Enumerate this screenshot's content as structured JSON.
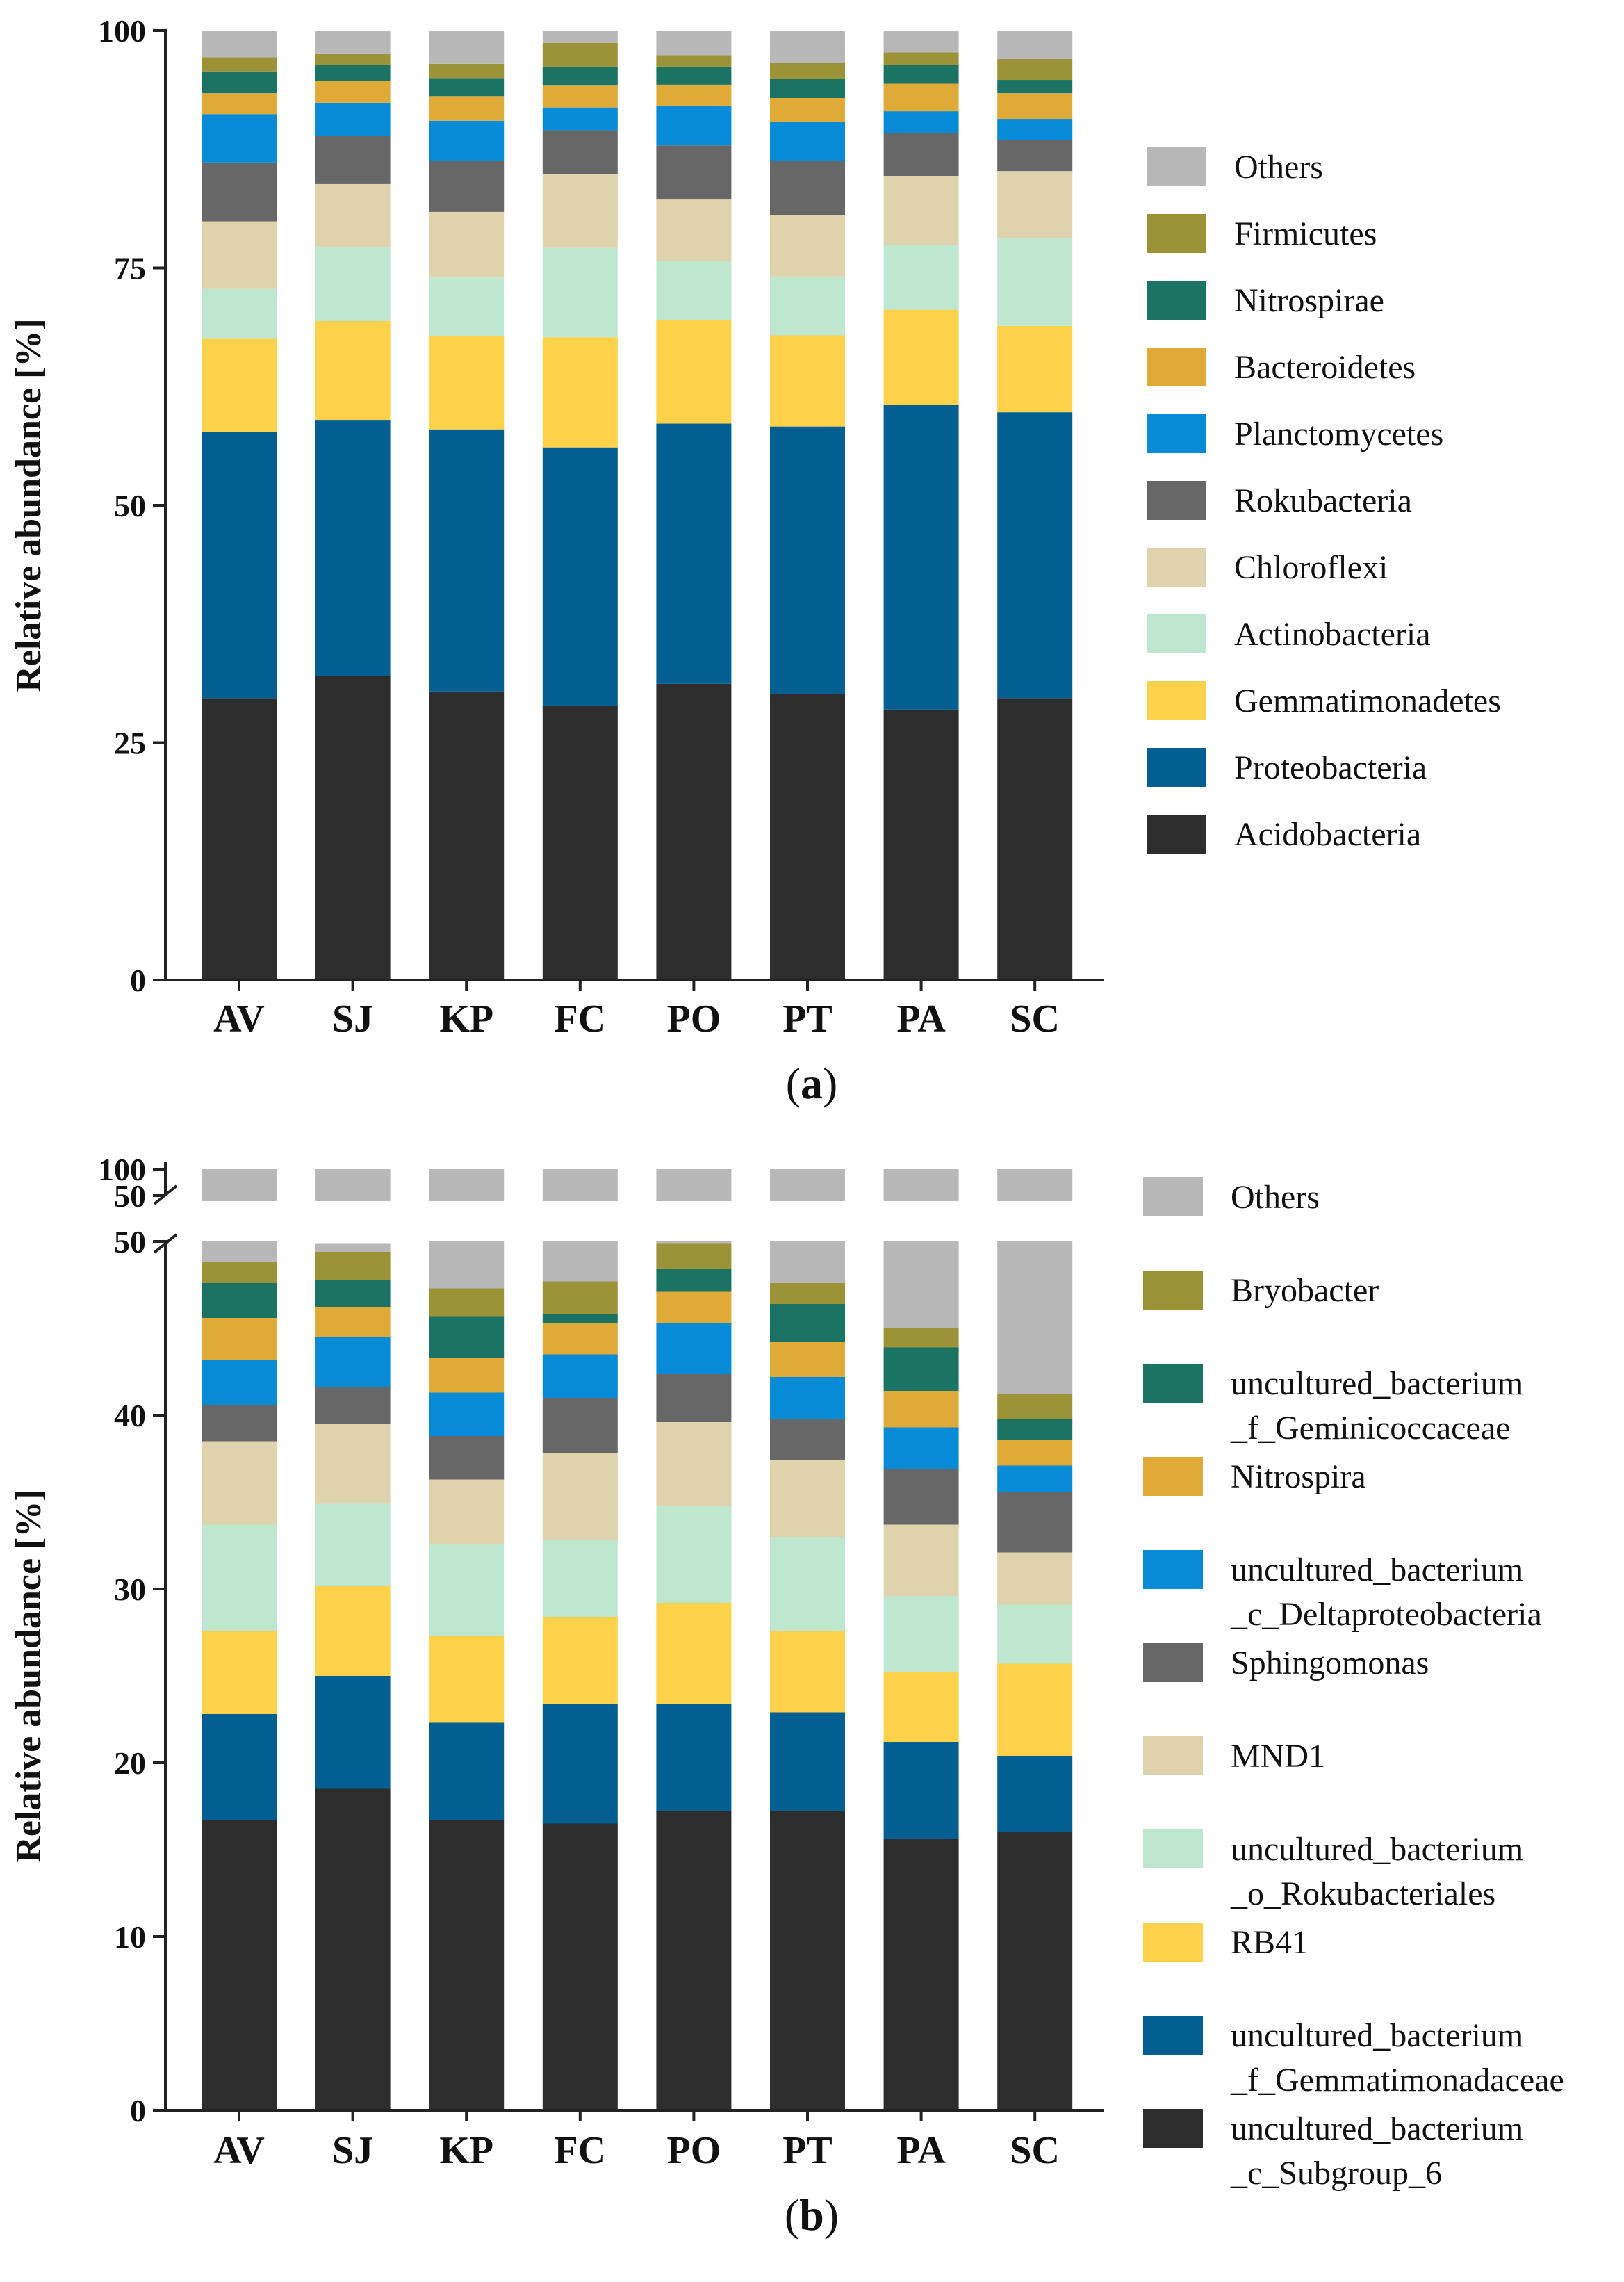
{
  "chart_data": [
    {
      "panel": "a",
      "panel_label": "a",
      "type": "bar",
      "stacked": true,
      "ylabel": "Relative abundance [%]",
      "ylim": [
        0,
        100
      ],
      "yticks": [
        0,
        25,
        50,
        75,
        100
      ],
      "categories": [
        "AV",
        "SJ",
        "KP",
        "FC",
        "PO",
        "PT",
        "PA",
        "SC"
      ],
      "legend_position": "right",
      "series": [
        {
          "name": "Acidobacteria",
          "color": "#2d2d2d",
          "values": [
            29.7,
            32.0,
            30.4,
            28.9,
            31.2,
            30.1,
            28.5,
            29.7
          ]
        },
        {
          "name": "Proteobacteria",
          "color": "#035f91",
          "values": [
            28.0,
            27.0,
            27.6,
            27.2,
            27.4,
            28.2,
            32.1,
            30.1
          ]
        },
        {
          "name": "Gemmatimonadetes",
          "color": "#fdd24a",
          "values": [
            9.9,
            10.4,
            9.8,
            11.6,
            10.9,
            9.6,
            10.0,
            9.1
          ]
        },
        {
          "name": "Actinobacteria",
          "color": "#bfe6cf",
          "values": [
            5.2,
            7.8,
            6.2,
            9.4,
            6.2,
            6.2,
            6.8,
            9.2
          ]
        },
        {
          "name": "Chloroflexi",
          "color": "#dfd3ad",
          "values": [
            7.1,
            6.7,
            6.9,
            7.8,
            6.5,
            6.5,
            7.3,
            7.1
          ]
        },
        {
          "name": "Rokubacteria",
          "color": "#676767",
          "values": [
            6.2,
            5.0,
            5.4,
            4.6,
            5.7,
            5.7,
            4.5,
            3.3
          ]
        },
        {
          "name": "Planctomycetes",
          "color": "#078bd6",
          "values": [
            5.1,
            3.5,
            4.2,
            2.4,
            4.2,
            4.1,
            2.3,
            2.2
          ]
        },
        {
          "name": "Bacteroidetes",
          "color": "#e0aa38",
          "values": [
            2.2,
            2.3,
            2.6,
            2.3,
            2.2,
            2.5,
            2.9,
            2.7
          ]
        },
        {
          "name": "Nitrospirae",
          "color": "#1a7363",
          "values": [
            2.3,
            1.7,
            1.9,
            2.0,
            1.9,
            2.0,
            2.0,
            1.4
          ]
        },
        {
          "name": "Firmicutes",
          "color": "#9c9238",
          "values": [
            1.5,
            1.2,
            1.5,
            2.5,
            1.2,
            1.7,
            1.3,
            2.2
          ]
        },
        {
          "name": "Others",
          "color": "#b8b8b8",
          "values": [
            2.8,
            2.4,
            3.5,
            1.3,
            2.6,
            3.4,
            2.3,
            3.0
          ]
        }
      ]
    },
    {
      "panel": "b",
      "panel_label": "b",
      "type": "bar",
      "stacked": true,
      "broken_axis": true,
      "ylabel": "Relative abundance [%]",
      "ylim": [
        0,
        50
      ],
      "yticks": [
        0,
        10,
        20,
        30,
        40,
        50
      ],
      "break_ticks": [
        50,
        100
      ],
      "categories": [
        "AV",
        "SJ",
        "KP",
        "FC",
        "PO",
        "PT",
        "PA",
        "SC"
      ],
      "legend_position": "right",
      "series": [
        {
          "name": "uncultured_bacterium_c_Subgroup_6",
          "label_lines": [
            "uncultured_bacterium",
            "_c_Subgroup_6"
          ],
          "color": "#2d2d2d",
          "values": [
            16.7,
            18.5,
            16.7,
            16.5,
            17.2,
            17.2,
            15.6,
            16.0
          ]
        },
        {
          "name": "uncultured_bacterium_f_Gemmatimonadaceae",
          "label_lines": [
            "uncultured_bacterium",
            "_f_Gemmatimonadaceae"
          ],
          "color": "#035f91",
          "values": [
            6.1,
            6.5,
            5.6,
            6.9,
            6.2,
            5.7,
            5.6,
            4.4
          ]
        },
        {
          "name": "RB41",
          "label_lines": [
            "RB41"
          ],
          "color": "#fdd24a",
          "values": [
            4.8,
            5.2,
            5.0,
            5.0,
            5.8,
            4.7,
            4.0,
            5.3
          ]
        },
        {
          "name": "uncultured_bacterium_o_Rokubacteriales",
          "label_lines": [
            "uncultured_bacterium",
            "_o_Rokubacteriales"
          ],
          "color": "#bfe6cf",
          "values": [
            6.1,
            4.7,
            5.3,
            4.4,
            5.6,
            5.4,
            4.4,
            3.4
          ]
        },
        {
          "name": "MND1",
          "label_lines": [
            "MND1"
          ],
          "color": "#dfd3ad",
          "values": [
            4.8,
            4.6,
            3.7,
            5.0,
            4.8,
            4.4,
            4.1,
            3.0
          ]
        },
        {
          "name": "Sphingomonas",
          "label_lines": [
            "Sphingomonas"
          ],
          "color": "#676767",
          "values": [
            2.1,
            2.1,
            2.5,
            3.2,
            2.8,
            2.4,
            3.2,
            3.5
          ]
        },
        {
          "name": "uncultured_bacterium_c_Deltaproteobacteria",
          "label_lines": [
            "uncultured_bacterium",
            "_c_Deltaproteobacteria"
          ],
          "color": "#078bd6",
          "values": [
            2.6,
            2.9,
            2.5,
            2.5,
            2.9,
            2.4,
            2.4,
            1.5
          ]
        },
        {
          "name": "Nitrospira",
          "label_lines": [
            "Nitrospira"
          ],
          "color": "#e0aa38",
          "values": [
            2.4,
            1.7,
            2.0,
            1.8,
            1.8,
            2.0,
            2.1,
            1.5
          ]
        },
        {
          "name": "uncultured_bacterium_f_Geminicoccaceae",
          "label_lines": [
            "uncultured_bacterium",
            "_f_Geminicoccaceae"
          ],
          "color": "#1a7363",
          "values": [
            2.0,
            1.6,
            2.4,
            0.5,
            1.3,
            2.2,
            2.5,
            1.2
          ]
        },
        {
          "name": "Bryobacter",
          "label_lines": [
            "Bryobacter"
          ],
          "color": "#9c9238",
          "values": [
            1.2,
            1.6,
            1.6,
            1.9,
            1.5,
            1.2,
            1.1,
            1.4
          ]
        },
        {
          "name": "Others",
          "label_lines": [
            "Others"
          ],
          "color": "#b8b8b8",
          "values": [
            1.2,
            0.5,
            2.7,
            2.3,
            0.1,
            2.4,
            5.0,
            8.8
          ]
        }
      ]
    }
  ]
}
